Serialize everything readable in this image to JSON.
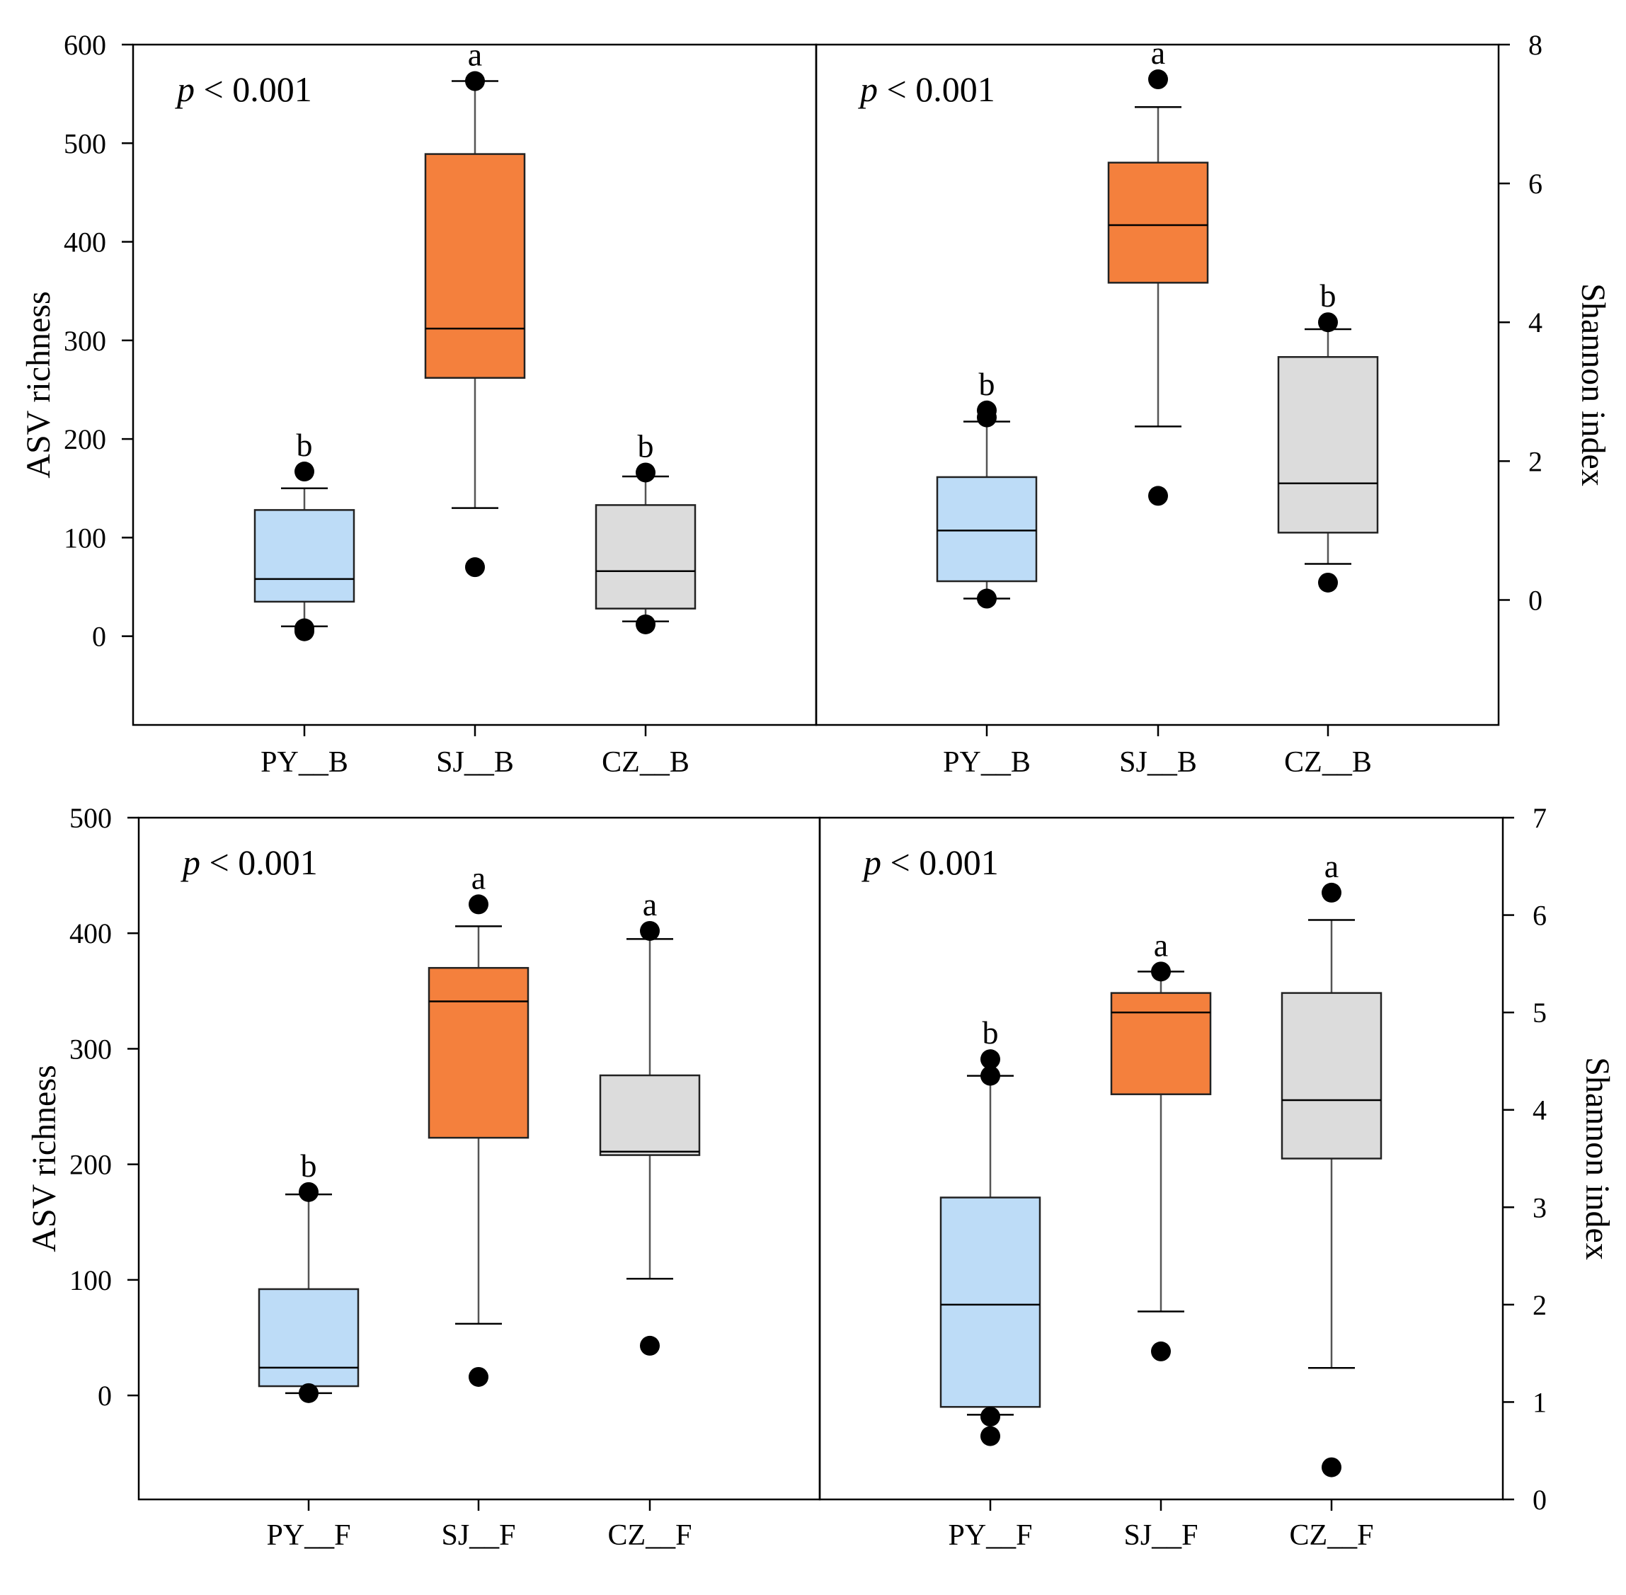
{
  "colors": {
    "PY": "#bddcf7",
    "SJ": "#f4803d",
    "CZ": "#dcdcdc",
    "stroke": "#000000",
    "whisker": "#555555"
  },
  "chart_data": [
    {
      "type": "box",
      "panel": "top-left",
      "title": "",
      "ylabel": "ASV richness",
      "y_axis_side": "left",
      "ylim": [
        -90,
        600
      ],
      "yticks": [
        0,
        100,
        200,
        300,
        400,
        500,
        600
      ],
      "tick_labels": [
        "0",
        "100",
        "200",
        "300",
        "400",
        "500",
        "600"
      ],
      "annotation": {
        "italic": "p",
        "text": " < 0.001"
      },
      "categories": [
        "PY__B",
        "SJ__B",
        "CZ__B"
      ],
      "groups": [
        {
          "label": "PY__B",
          "color_key": "PY",
          "min": 10,
          "q1": 35,
          "median": 58,
          "q3": 128,
          "max": 150,
          "outliers": [
            5,
            8,
            167
          ],
          "letter": "b"
        },
        {
          "label": "SJ__B",
          "color_key": "SJ",
          "min": 130,
          "q1": 262,
          "median": 312,
          "q3": 489,
          "max": 563,
          "outliers": [
            70,
            563
          ],
          "letter": "a"
        },
        {
          "label": "CZ__B",
          "color_key": "CZ",
          "min": 15,
          "q1": 28,
          "median": 66,
          "q3": 133,
          "max": 162,
          "outliers": [
            12,
            166
          ],
          "letter": "b"
        }
      ]
    },
    {
      "type": "box",
      "panel": "top-right",
      "title": "",
      "ylabel": "Shannon index",
      "y_axis_side": "right",
      "ylim": [
        -1.8,
        8
      ],
      "yticks": [
        0,
        2,
        4,
        6,
        8
      ],
      "tick_labels": [
        "0",
        "2",
        "4",
        "6",
        "8"
      ],
      "annotation": {
        "italic": "p",
        "text": " < 0.001"
      },
      "categories": [
        "PY__B",
        "SJ__B",
        "CZ__B"
      ],
      "groups": [
        {
          "label": "PY__B",
          "color_key": "PY",
          "min": 0.02,
          "q1": 0.27,
          "median": 1.0,
          "q3": 1.77,
          "max": 2.57,
          "outliers": [
            0.02,
            2.63,
            2.73
          ],
          "letter": "b"
        },
        {
          "label": "SJ__B",
          "color_key": "SJ",
          "min": 2.5,
          "q1": 4.57,
          "median": 5.4,
          "q3": 6.3,
          "max": 7.1,
          "outliers": [
            1.5,
            7.5
          ],
          "letter": "a"
        },
        {
          "label": "CZ__B",
          "color_key": "CZ",
          "min": 0.52,
          "q1": 0.97,
          "median": 1.68,
          "q3": 3.5,
          "max": 3.9,
          "outliers": [
            0.25,
            4.0
          ],
          "letter": "b"
        }
      ]
    },
    {
      "type": "box",
      "panel": "bottom-left",
      "title": "",
      "ylabel": "ASV richness",
      "y_axis_side": "left",
      "ylim": [
        -90,
        500
      ],
      "yticks": [
        0,
        100,
        200,
        300,
        400,
        500
      ],
      "tick_labels": [
        "0",
        "100",
        "200",
        "300",
        "400",
        "500"
      ],
      "annotation": {
        "italic": "p",
        "text": " < 0.001"
      },
      "categories": [
        "PY__F",
        "SJ__F",
        "CZ__F"
      ],
      "groups": [
        {
          "label": "PY__F",
          "color_key": "PY",
          "min": 2,
          "q1": 8,
          "median": 24,
          "q3": 92,
          "max": 174,
          "outliers": [
            2,
            176
          ],
          "letter": "b"
        },
        {
          "label": "SJ__F",
          "color_key": "SJ",
          "min": 62,
          "q1": 223,
          "median": 341,
          "q3": 370,
          "max": 406,
          "outliers": [
            16,
            425
          ],
          "letter": "a"
        },
        {
          "label": "CZ__F",
          "color_key": "CZ",
          "min": 101,
          "q1": 208,
          "median": 211,
          "q3": 277,
          "max": 395,
          "outliers": [
            43,
            402
          ],
          "letter": "a"
        }
      ]
    },
    {
      "type": "box",
      "panel": "bottom-right",
      "title": "",
      "ylabel": "Shannon index",
      "y_axis_side": "right",
      "ylim": [
        0,
        7
      ],
      "yticks": [
        0,
        1,
        2,
        3,
        4,
        5,
        6,
        7
      ],
      "tick_labels": [
        "0",
        "1",
        "2",
        "3",
        "4",
        "5",
        "6",
        "7"
      ],
      "annotation": {
        "italic": "p",
        "text": " < 0.001"
      },
      "categories": [
        "PY__F",
        "SJ__F",
        "CZ__F"
      ],
      "groups": [
        {
          "label": "PY__F",
          "color_key": "PY",
          "min": 0.87,
          "q1": 0.95,
          "median": 2.0,
          "q3": 3.1,
          "max": 4.35,
          "outliers": [
            0.65,
            0.85,
            4.35,
            4.52
          ],
          "letter": "b"
        },
        {
          "label": "SJ__F",
          "color_key": "SJ",
          "min": 1.93,
          "q1": 4.16,
          "median": 5.0,
          "q3": 5.2,
          "max": 5.42,
          "outliers": [
            1.52,
            5.42
          ],
          "letter": "a"
        },
        {
          "label": "CZ__F",
          "color_key": "CZ",
          "min": 1.35,
          "q1": 3.5,
          "median": 4.1,
          "q3": 5.2,
          "max": 5.95,
          "outliers": [
            0.33,
            6.23
          ],
          "letter": "a"
        }
      ]
    }
  ]
}
